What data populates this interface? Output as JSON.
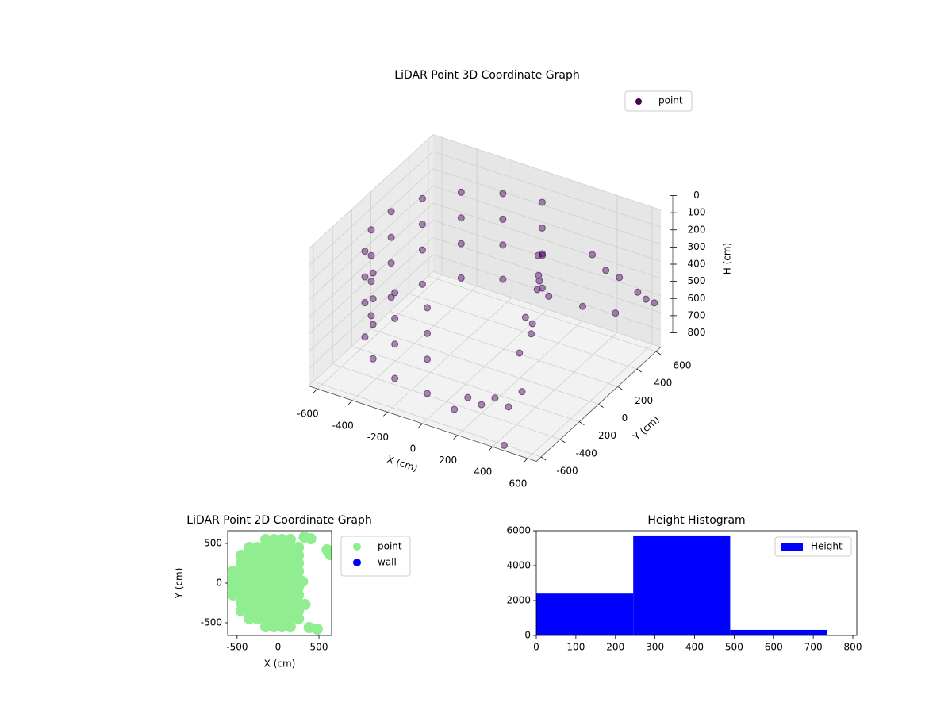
{
  "chart_data": [
    {
      "type": "scatter3d",
      "title": "LiDAR Point 3D Coordinate Graph",
      "xlabel": "X (cm)",
      "ylabel": "Y (cm)",
      "zlabel": "H (cm)",
      "xlim": [
        -650,
        650
      ],
      "ylim": [
        -650,
        650
      ],
      "zlim": [
        800,
        0
      ],
      "xticks": [
        -600,
        -400,
        -200,
        0,
        200,
        400,
        600
      ],
      "yticks": [
        -600,
        -400,
        -200,
        0,
        200,
        400,
        600
      ],
      "zticks": [
        0,
        100,
        200,
        300,
        400,
        500,
        600,
        700,
        800
      ],
      "grid": true,
      "legend": "upper right",
      "series": [
        {
          "name": "point",
          "color": "#440154",
          "x": [
            0,
            -205,
            -386,
            -520,
            -591,
            -591,
            -520,
            -386,
            -205,
            0,
            0,
            -205,
            -386,
            -520,
            -591,
            -591,
            -520,
            -386,
            -205,
            0,
            0,
            -205,
            -386,
            -520,
            -591,
            -591,
            -520,
            -386,
            -205,
            0,
            0,
            -205,
            -386,
            -520,
            -591,
            -591,
            -520,
            -386,
            -205,
            0,
            250,
            280,
            230,
            300,
            260,
            220,
            300,
            240,
            320,
            280,
            450,
            500,
            550,
            600,
            620,
            450,
            500,
            640,
            150,
            200,
            250,
            300,
            100,
            350,
            450
          ],
          "y": [
            600,
            564,
            460,
            300,
            104,
            -104,
            -300,
            -460,
            -564,
            -600,
            600,
            564,
            460,
            300,
            104,
            -104,
            -300,
            -460,
            -564,
            -600,
            600,
            564,
            460,
            300,
            104,
            -104,
            -300,
            -460,
            -564,
            -600,
            600,
            564,
            460,
            300,
            104,
            -104,
            -300,
            -460,
            -564,
            -600,
            100,
            50,
            150,
            0,
            -50,
            200,
            120,
            60,
            -100,
            -150,
            300,
            350,
            400,
            500,
            550,
            200,
            450,
            600,
            -450,
            -400,
            -350,
            -300,
            -500,
            -250,
            -620
          ],
          "z": [
            150,
            150,
            150,
            150,
            150,
            150,
            150,
            150,
            150,
            150,
            300,
            300,
            300,
            300,
            300,
            300,
            300,
            300,
            300,
            300,
            450,
            450,
            450,
            450,
            450,
            450,
            450,
            450,
            450,
            450,
            650,
            650,
            650,
            650,
            650,
            650,
            650,
            650,
            650,
            650,
            120,
            200,
            300,
            250,
            400,
            180,
            350,
            500,
            450,
            550,
            150,
            250,
            300,
            420,
            480,
            400,
            550,
            520,
            700,
            750,
            720,
            780,
            760,
            700,
            790
          ]
        }
      ]
    },
    {
      "type": "scatter",
      "title": "LiDAR Point 2D Coordinate Graph",
      "xlabel": "X (cm)",
      "ylabel": "Y (cm)",
      "xlim": [
        -615,
        655
      ],
      "ylim": [
        -660,
        660
      ],
      "xticks": [
        -500,
        0,
        500
      ],
      "yticks": [
        -500,
        0,
        500
      ],
      "legend": "outside right",
      "series": [
        {
          "name": "point",
          "color": "#90ee90",
          "x": [
            -550,
            -550,
            -550,
            -550,
            -450,
            -450,
            -450,
            -450,
            -450,
            -450,
            -450,
            -450,
            -350,
            -350,
            -350,
            -350,
            -350,
            -350,
            -350,
            -350,
            -350,
            -350,
            -250,
            -250,
            -250,
            -250,
            -250,
            -250,
            -250,
            -250,
            -250,
            -250,
            -150,
            -150,
            -150,
            -150,
            -150,
            -150,
            -150,
            -150,
            -150,
            -150,
            -150,
            -150,
            -50,
            -50,
            -50,
            -50,
            -50,
            -50,
            -50,
            -50,
            -50,
            -50,
            -50,
            -50,
            50,
            50,
            50,
            50,
            50,
            50,
            50,
            50,
            50,
            50,
            50,
            50,
            150,
            150,
            150,
            150,
            150,
            150,
            150,
            150,
            150,
            150,
            150,
            150,
            250,
            250,
            250,
            250,
            250,
            250,
            250,
            250,
            250,
            250,
            320,
            400,
            600,
            640,
            330,
            380,
            480,
            300
          ],
          "y": [
            -150,
            -50,
            50,
            150,
            -350,
            -250,
            -150,
            -50,
            50,
            150,
            250,
            350,
            -450,
            -350,
            -250,
            -150,
            -50,
            50,
            150,
            250,
            350,
            450,
            -450,
            -350,
            -250,
            -150,
            -50,
            50,
            150,
            250,
            350,
            450,
            -550,
            -450,
            -350,
            -250,
            -150,
            -50,
            50,
            150,
            250,
            350,
            450,
            550,
            -550,
            -450,
            -350,
            -250,
            -150,
            -50,
            50,
            150,
            250,
            350,
            450,
            550,
            -550,
            -450,
            -350,
            -250,
            -150,
            -50,
            50,
            150,
            250,
            350,
            450,
            550,
            -550,
            -450,
            -350,
            -250,
            -150,
            -50,
            50,
            150,
            250,
            350,
            450,
            550,
            -450,
            -350,
            -250,
            -150,
            -50,
            50,
            150,
            250,
            350,
            450,
            580,
            560,
            420,
            360,
            -270,
            -560,
            -580,
            20
          ]
        },
        {
          "name": "wall",
          "color": "#0000ff",
          "x": [],
          "y": []
        }
      ]
    },
    {
      "type": "histogram",
      "title": "Height Histogram",
      "xlim": [
        0,
        810
      ],
      "ylim": [
        0,
        6000
      ],
      "xticks": [
        0,
        100,
        200,
        300,
        400,
        500,
        600,
        700,
        800
      ],
      "yticks": [
        0,
        2000,
        4000,
        6000
      ],
      "legend": "upper right",
      "bins": [
        0,
        245,
        490,
        735
      ],
      "series": [
        {
          "name": "Height",
          "color": "#0000ff",
          "values": [
            2400,
            5730,
            320
          ]
        }
      ]
    }
  ]
}
